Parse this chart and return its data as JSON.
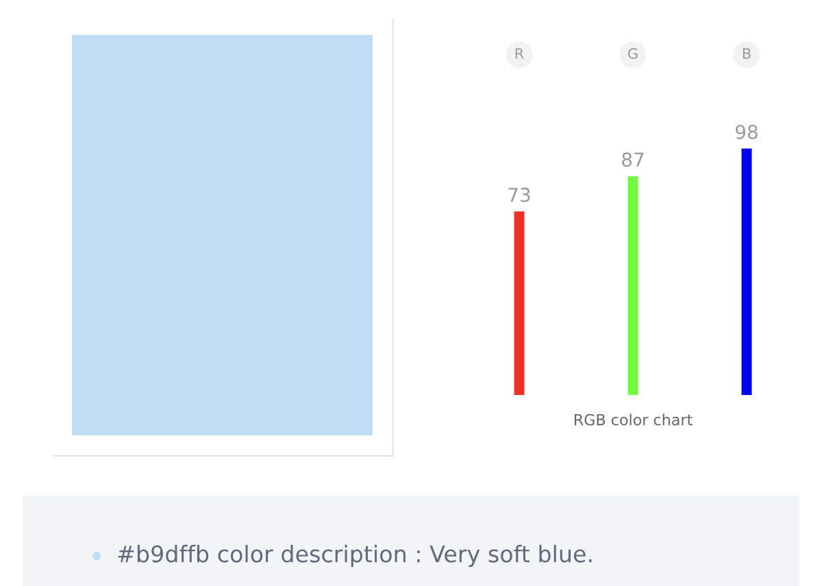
{
  "chart_data": {
    "type": "bar",
    "title": "RGB color chart",
    "categories": [
      "R",
      "G",
      "B"
    ],
    "values": [
      73,
      87,
      98
    ],
    "colors": [
      "#ee3124",
      "#72fa41",
      "#0000f0"
    ],
    "data_labels": true,
    "annotations": [
      "#b9dffb color description : Very soft blue."
    ]
  }
}
